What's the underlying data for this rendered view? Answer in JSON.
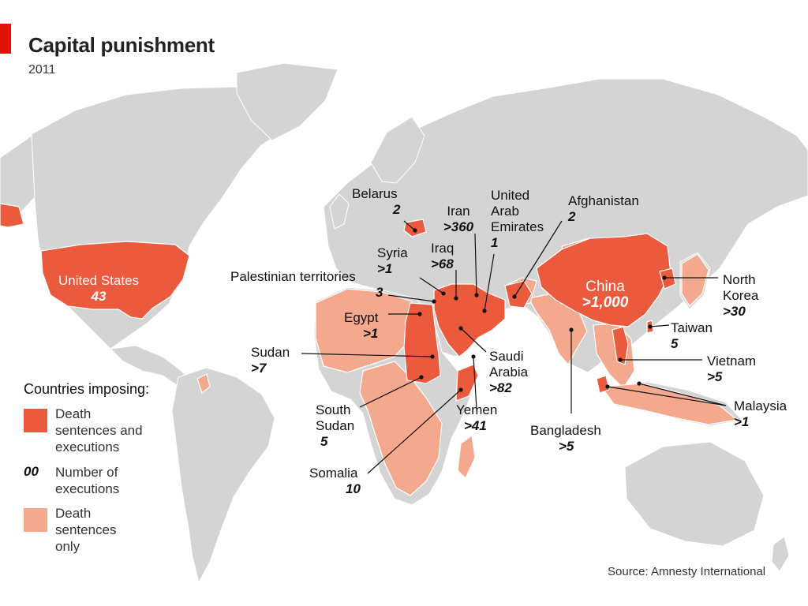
{
  "header": {
    "title": "Capital punishment",
    "subtitle": "2011"
  },
  "source": "Source: Amnesty International",
  "colors": {
    "executions": "#ec5a3d",
    "sentences_only": "#f4a88e",
    "land": "#d4d4d4",
    "ocean": "#ffffff",
    "accent": "#e3120b"
  },
  "legend": {
    "title": "Countries imposing:",
    "items": [
      {
        "label": "Death sentences and executions",
        "lines": [
          "Death",
          "sentences and",
          "executions"
        ]
      },
      {
        "marker": "00",
        "label": "Number of executions",
        "lines": [
          "Number of",
          "executions"
        ]
      },
      {
        "label": "Death sentences only",
        "lines": [
          "Death",
          "sentences",
          "only"
        ]
      }
    ]
  },
  "countries": {
    "united_states": {
      "name": "United States",
      "value": "43"
    },
    "belarus": {
      "name": "Belarus",
      "value": "2"
    },
    "iran": {
      "name": "Iran",
      "value": ">360"
    },
    "uae": {
      "name": "United Arab Emirates",
      "lines": [
        "United",
        "Arab",
        "Emirates"
      ],
      "value": "1"
    },
    "afghanistan": {
      "name": "Afghanistan",
      "value": "2"
    },
    "syria": {
      "name": "Syria",
      "value": ">1"
    },
    "iraq": {
      "name": "Iraq",
      "value": ">68"
    },
    "palestinian": {
      "name": "Palestinian territories",
      "value": "3"
    },
    "egypt": {
      "name": "Egypt",
      "value": ">1"
    },
    "sudan": {
      "name": "Sudan",
      "value": ">7"
    },
    "south_sudan": {
      "name": "South Sudan",
      "lines": [
        "South",
        "Sudan"
      ],
      "value": "5"
    },
    "somalia": {
      "name": "Somalia",
      "value": "10"
    },
    "yemen": {
      "name": "Yemen",
      "value": ">41"
    },
    "saudi_arabia": {
      "name": "Saudi Arabia",
      "lines": [
        "Saudi",
        "Arabia"
      ],
      "value": ">82"
    },
    "china": {
      "name": "China",
      "value": ">1,000"
    },
    "north_korea": {
      "name": "North Korea",
      "lines": [
        "North",
        "Korea"
      ],
      "value": ">30"
    },
    "taiwan": {
      "name": "Taiwan",
      "value": "5"
    },
    "vietnam": {
      "name": "Vietnam",
      "value": ">5"
    },
    "malaysia": {
      "name": "Malaysia",
      "value": ">1"
    },
    "bangladesh": {
      "name": "Bangladesh",
      "value": ">5"
    }
  }
}
